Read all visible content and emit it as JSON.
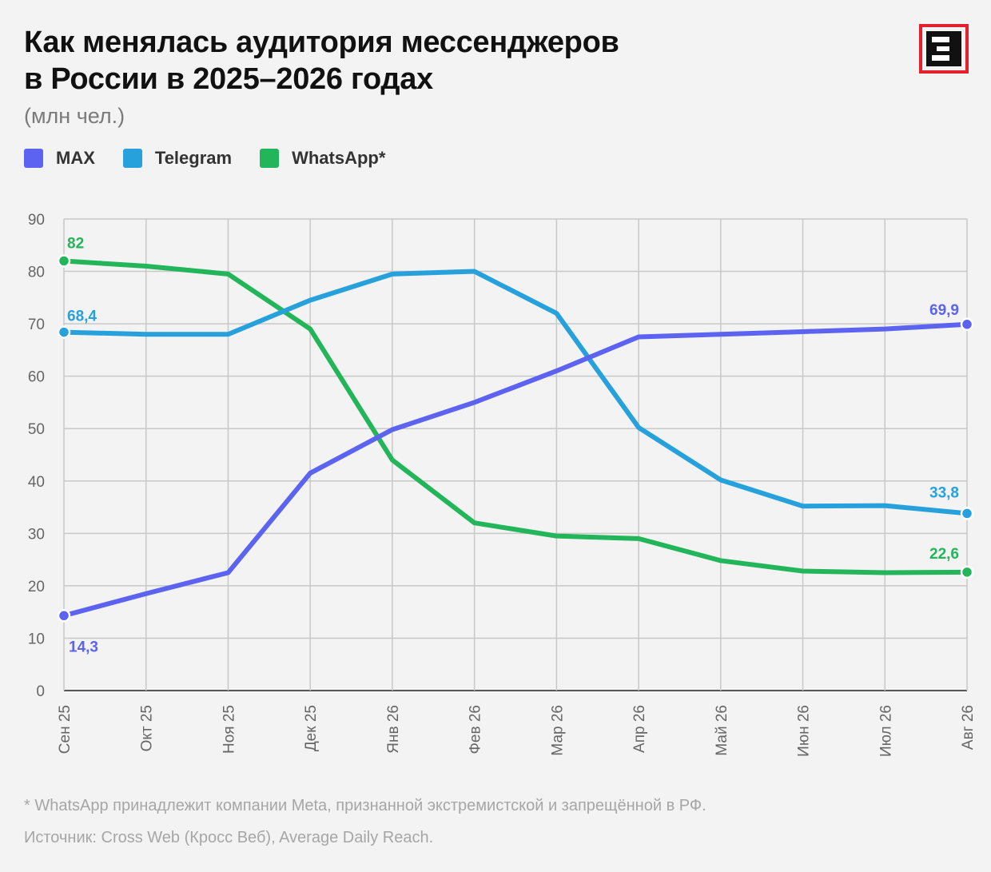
{
  "title_line1": "Как менялась аудитория мессенджеров",
  "title_line2": "в России в 2025–2026 годах",
  "subtitle": "(млн чел.)",
  "logo_icon": "e-letter-logo-icon",
  "footnote": "* WhatsApp принадлежит компании Meta, признанной экстремистской и запрещённой в РФ.",
  "source": "Источник: Cross Web (Кросс Веб), Average Daily Reach.",
  "chart_data": {
    "type": "line",
    "categories": [
      "Сен 25",
      "Окт 25",
      "Ноя 25",
      "Дек 25",
      "Янв 26",
      "Фев 26",
      "Мар 26",
      "Апр 26",
      "Май 26",
      "Июн 26",
      "Июл 26",
      "Авг 26"
    ],
    "ylim": [
      0,
      90
    ],
    "yticks": [
      0,
      10,
      20,
      30,
      40,
      50,
      60,
      70,
      80,
      90
    ],
    "grid": true,
    "legend_position": "top-left",
    "series": [
      {
        "name": "MAX",
        "color": "#5b63f0",
        "values": [
          14.3,
          18.5,
          22.5,
          41.5,
          49.8,
          55,
          61,
          67.5,
          68,
          68.5,
          69,
          69.9
        ],
        "labels": {
          "start": "14,3",
          "end": "69,9"
        }
      },
      {
        "name": "Telegram",
        "color": "#26a1dc",
        "values": [
          68.4,
          68,
          68,
          74.5,
          79.5,
          80,
          72,
          50.2,
          40.2,
          35.2,
          35.3,
          33.8
        ],
        "labels": {
          "start": "68,4",
          "end": "33,8"
        }
      },
      {
        "name": "WhatsApp*",
        "color": "#23b559",
        "values": [
          82,
          81,
          79.5,
          69,
          44,
          32,
          29.5,
          29,
          24.8,
          22.8,
          22.5,
          22.6
        ],
        "labels": {
          "start": "82",
          "end": "22,6"
        }
      }
    ]
  }
}
